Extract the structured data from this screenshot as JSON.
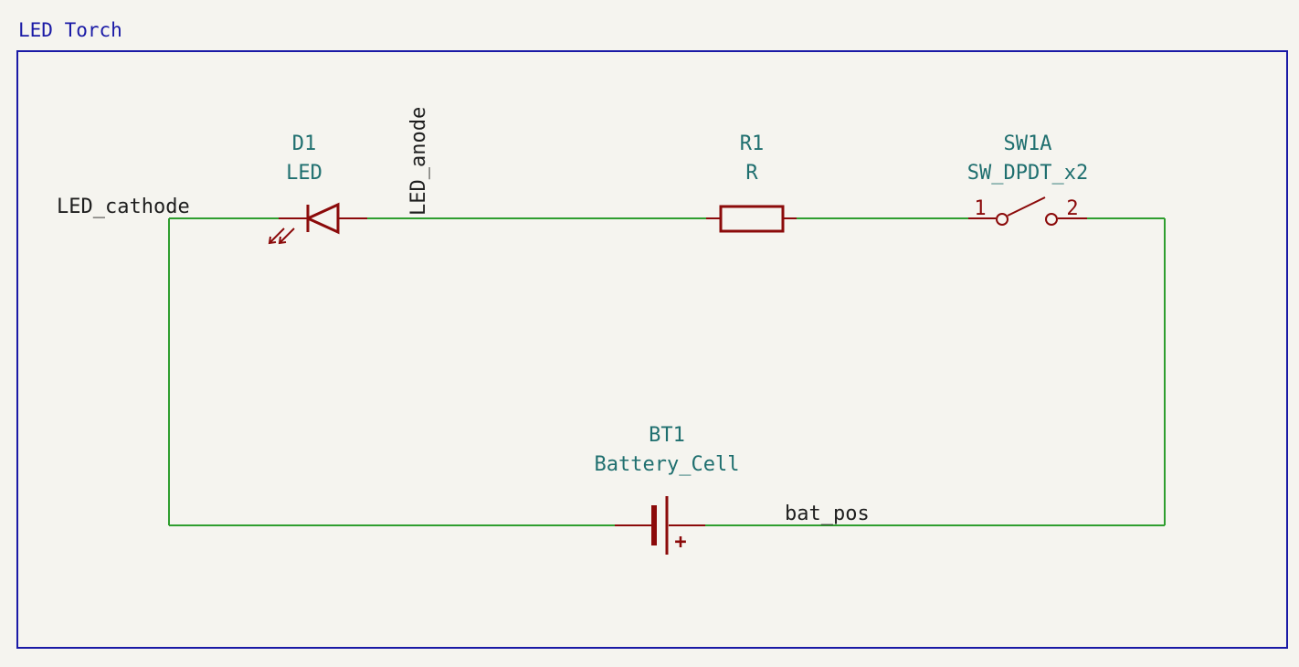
{
  "sheet": {
    "title": "LED Torch"
  },
  "components": {
    "d1": {
      "reference": "D1",
      "value": "LED"
    },
    "r1": {
      "reference": "R1",
      "value": "R"
    },
    "sw1a": {
      "reference": "SW1A",
      "value": "SW_DPDT_x2",
      "pin1": "1",
      "pin2": "2"
    },
    "bt1": {
      "reference": "BT1",
      "value": "Battery_Cell",
      "polarity": "+"
    }
  },
  "nets": {
    "led_cathode": "LED_cathode",
    "led_anode": "LED_anode",
    "bat_pos": "bat_pos"
  },
  "colors": {
    "background": "#f5f4ef",
    "sheet_border": "#1a1aa6",
    "wire": "#2f9e2f",
    "symbol": "#8b0a0a",
    "reference_text": "#1f6f6f",
    "net_label": "#1e1e1e"
  }
}
